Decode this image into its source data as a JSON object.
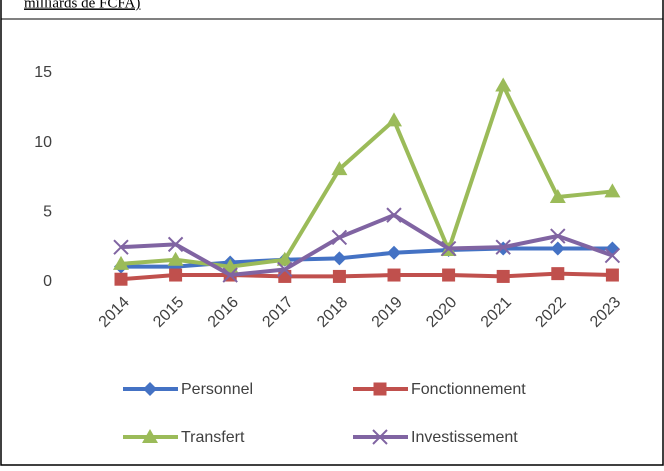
{
  "chart_data": {
    "type": "line",
    "title": "milliards de FCFA)",
    "categories": [
      "2014",
      "2015",
      "2016",
      "2017",
      "2018",
      "2019",
      "2020",
      "2021",
      "2022",
      "2023"
    ],
    "series": [
      {
        "name": "Personnel",
        "color": "#4472c4",
        "marker": "diamond",
        "values": [
          1.1,
          1.1,
          1.4,
          1.6,
          1.7,
          2.1,
          2.3,
          2.4,
          2.4,
          2.4
        ]
      },
      {
        "name": "Fonctionnement",
        "color": "#c0504d",
        "marker": "square",
        "values": [
          0.2,
          0.5,
          0.5,
          0.4,
          0.4,
          0.5,
          0.5,
          0.4,
          0.6,
          0.5
        ]
      },
      {
        "name": "Transfert",
        "color": "#9bbb59",
        "marker": "triangle",
        "values": [
          1.3,
          1.6,
          1.1,
          1.6,
          8.1,
          11.6,
          2.3,
          14.1,
          6.1,
          6.5
        ]
      },
      {
        "name": "Investissement",
        "color": "#8064a2",
        "marker": "x",
        "values": [
          2.5,
          2.7,
          0.5,
          0.9,
          3.2,
          4.8,
          2.4,
          2.5,
          3.3,
          1.9
        ]
      }
    ],
    "ylim": [
      0,
      15
    ],
    "yticks": [
      0,
      5,
      10,
      15
    ],
    "grid": false,
    "legend": "bottom"
  }
}
